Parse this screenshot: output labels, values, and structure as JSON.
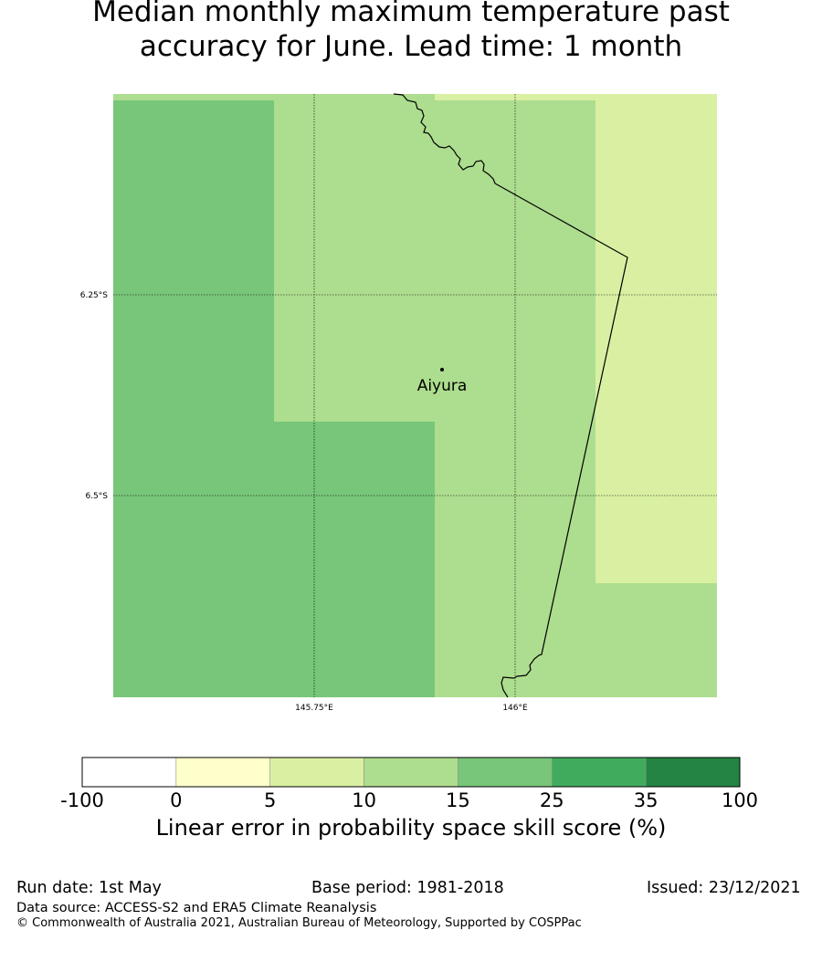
{
  "title": {
    "line1": "Median monthly maximum temperature past",
    "line2": "accuracy for June. Lead time: 1 month"
  },
  "map": {
    "place": "Aiyura",
    "lat_labels": [
      "6.25°S",
      "6.5°S"
    ],
    "lon_labels": [
      "145.75°E",
      "146°E"
    ]
  },
  "colorbar": {
    "title": "Linear error in probability space skill score (%)",
    "tick_labels": [
      "-100",
      "0",
      "5",
      "10",
      "15",
      "25",
      "35",
      "100"
    ],
    "colors": [
      "#ffffff",
      "#ffffcc",
      "#d9f0a3",
      "#addd8e",
      "#78c679",
      "#41ab5d",
      "#238443"
    ]
  },
  "footer": {
    "run_date": "Run date: 1st May",
    "base_period": "Base period: 1981-2018",
    "issued": "Issued: 23/12/2021",
    "data_source": "Data source: ACCESS-S2 and ERA5 Climate Reanalysis",
    "copyright": "© Commonwealth of Australia 2021, Australian Bureau of Meteorology, Supported by COSPPac"
  }
}
